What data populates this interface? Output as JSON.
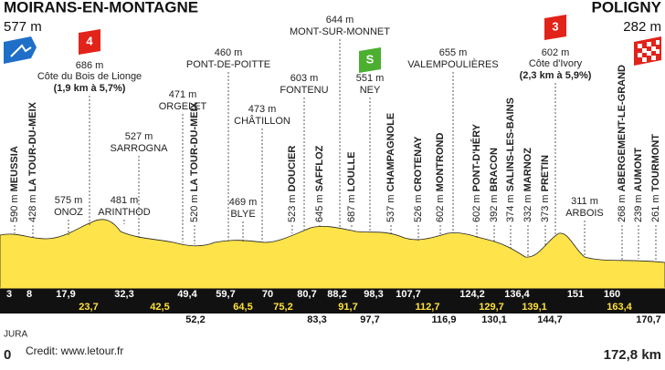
{
  "header": {
    "start": {
      "name": "MOIRANS-EN-MONTAGNE",
      "altitude": "577 m"
    },
    "finish": {
      "name": "POLIGNY",
      "altitude": "282 m"
    }
  },
  "icons": {
    "climb1": "4",
    "sprint": "S",
    "climb2": "3"
  },
  "climbs": [
    {
      "altitude": "686 m",
      "name": "Côte du Bois de Lionge",
      "detail": "(1,9 km à 5,7%)"
    },
    {
      "altitude": "602 m",
      "name": "Côte d'Ivory",
      "detail": "(2,3 km à 5,9%)"
    }
  ],
  "places_vertical": [
    {
      "altitude": "590 m",
      "name": "MEUSSIA"
    },
    {
      "altitude": "428 m",
      "name": "LA TOUR-DU-MEIX"
    },
    {
      "altitude": "520 m",
      "name": "LA TOUR-DU-MEIX"
    },
    {
      "altitude": "523 m",
      "name": "DOUCIER"
    },
    {
      "altitude": "645 m",
      "name": "SAFFLOZ"
    },
    {
      "altitude": "687 m",
      "name": "LOULLE"
    },
    {
      "altitude": "537 m",
      "name": "CHAMPAGNOLE"
    },
    {
      "altitude": "526 m",
      "name": "CROTENAY"
    },
    {
      "altitude": "602 m",
      "name": "MONTROND"
    },
    {
      "altitude": "602 m",
      "name": "PONT-D'HÉRY"
    },
    {
      "altitude": "392 m",
      "name": "BRACON"
    },
    {
      "altitude": "374 m",
      "name": "SALINS-LES-BAINS"
    },
    {
      "altitude": "332 m",
      "name": "MARNOZ"
    },
    {
      "altitude": "373 m",
      "name": "PRETIN"
    },
    {
      "altitude": "268 m",
      "name": "ABERGEMENT-LE-GRAND"
    },
    {
      "altitude": "239 m",
      "name": "AUMONT"
    },
    {
      "altitude": "261 m",
      "name": "TOURMONT"
    }
  ],
  "places_horizontal": [
    {
      "altitude": "575 m",
      "name": "ONOZ"
    },
    {
      "altitude": "481 m",
      "name": "ARINTHOD"
    },
    {
      "altitude": "527 m",
      "name": "SARROGNA"
    },
    {
      "altitude": "471 m",
      "name": "ORGELET"
    },
    {
      "altitude": "460 m",
      "name": "PONT-DE-POITTE"
    },
    {
      "altitude": "469 m",
      "name": "BLYE"
    },
    {
      "altitude": "473 m",
      "name": "CHÂTILLON"
    },
    {
      "altitude": "603 m",
      "name": "FONTENU"
    },
    {
      "altitude": "644 m",
      "name": "MONT-SUR-MONNET"
    },
    {
      "altitude": "551 m",
      "name": "NEY"
    },
    {
      "altitude": "655 m",
      "name": "VALEMPOULIÈRES"
    },
    {
      "altitude": "311 m",
      "name": "ARBOIS"
    }
  ],
  "distances": [
    [
      "3",
      "8",
      "17,9",
      "32,3",
      "49,4",
      "59,7",
      "70",
      "80,7",
      "88,2",
      "98,3",
      "107,7",
      "124,2",
      "136,4",
      "151",
      "160"
    ],
    [
      "23,7",
      "42,5",
      "64,5",
      "75,2",
      "91,7",
      "112,7",
      "129,7",
      "139,1",
      "163,4"
    ],
    [
      "52,2",
      "83,3",
      "97,7",
      "116,9",
      "130,1",
      "144,7",
      "170,7"
    ]
  ],
  "footer": {
    "region": "JURA",
    "start_km": "0",
    "credit": "Credit: www.letour.fr",
    "total_km": "172,8 km"
  }
}
